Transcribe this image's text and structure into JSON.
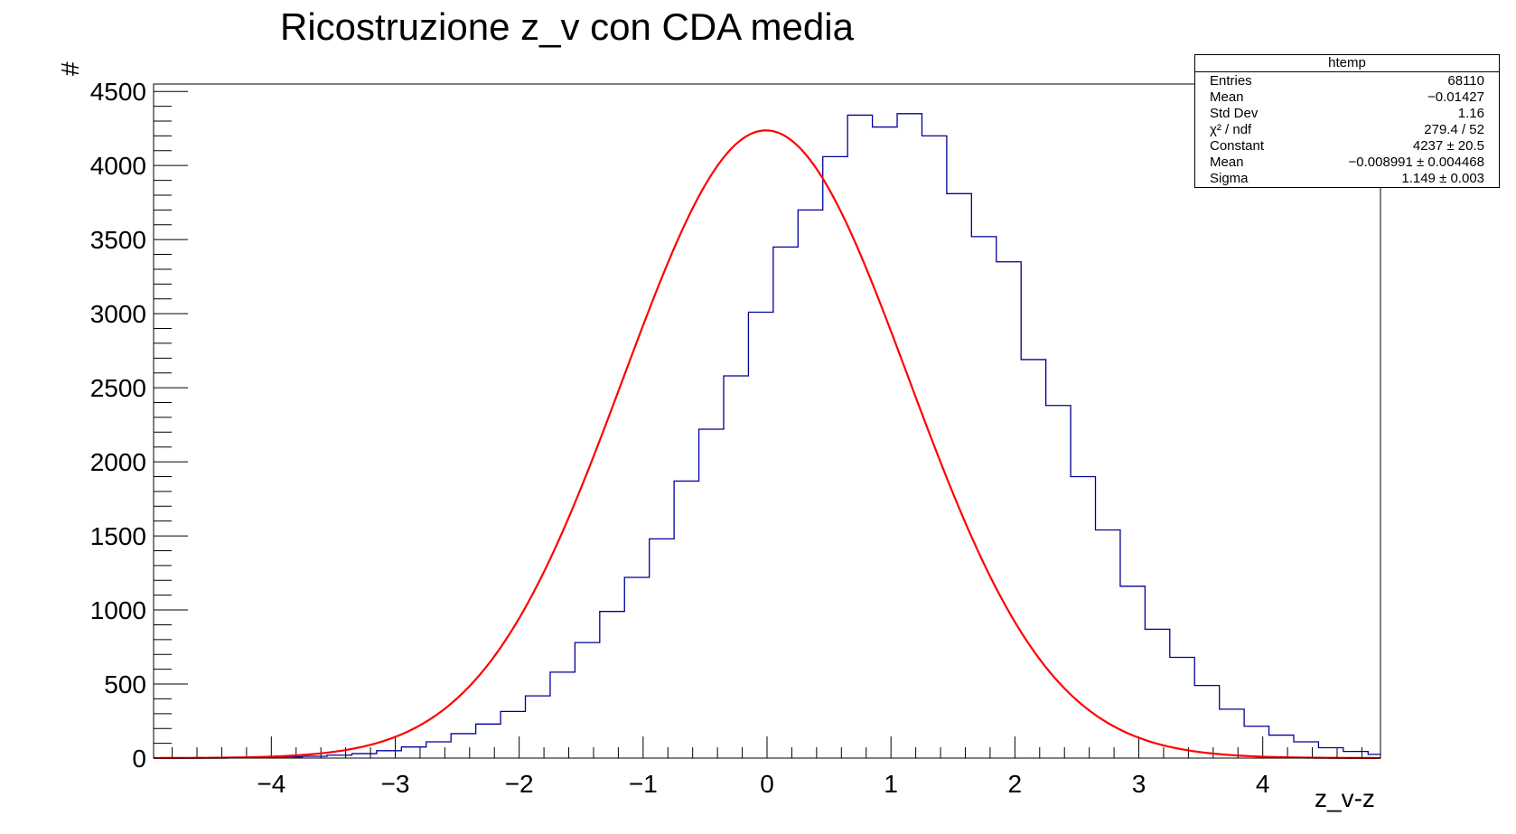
{
  "chart_data": {
    "type": "histogram",
    "title": "Ricostruzione z_v con CDA media",
    "xlabel": "z_v-z",
    "ylabel": "#",
    "xlim": [
      -4.95,
      4.95
    ],
    "ylim": [
      0,
      4550
    ],
    "x_ticks": [
      -4,
      -3,
      -2,
      -1,
      0,
      1,
      2,
      3,
      4
    ],
    "x_tick_labels": [
      "−4",
      "−3",
      "−2",
      "−1",
      "0",
      "1",
      "2",
      "3",
      "4"
    ],
    "y_ticks": [
      0,
      500,
      1000,
      1500,
      2000,
      2500,
      3000,
      3500,
      4000,
      4500
    ],
    "y_tick_labels": [
      "0",
      "500",
      "1000",
      "1500",
      "2000",
      "2500",
      "3000",
      "3500",
      "4000",
      "4500"
    ],
    "bin_width": 0.2,
    "bin_edges_start": -4.95,
    "bin_counts": [
      0,
      0,
      0,
      3,
      5,
      8,
      12,
      20,
      30,
      50,
      75,
      110,
      165,
      230,
      315,
      420,
      580,
      780,
      990,
      1220,
      1480,
      1870,
      2220,
      2580,
      3010,
      3450,
      3700,
      4060,
      4340,
      4260,
      4350,
      4200,
      3810,
      3520,
      3350,
      2690,
      2380,
      1900,
      1540,
      1160,
      870,
      680,
      490,
      330,
      215,
      155,
      110,
      70,
      45,
      25,
      15,
      8,
      5,
      3,
      2,
      1,
      0,
      0,
      0,
      0,
      0,
      0,
      0,
      0,
      0,
      0
    ],
    "histogram_color": "#000099",
    "fit": {
      "function": "gaus",
      "constant": 4237,
      "mean": -0.008991,
      "sigma": 1.149,
      "color": "#ff0000"
    },
    "grid": false,
    "legend_position": "top-right"
  },
  "stats_box": {
    "name": "htemp",
    "rows": [
      {
        "label": "Entries",
        "value": "68110"
      },
      {
        "label": "Mean",
        "value": "−0.01427"
      },
      {
        "label": "Std Dev",
        "value": "1.16"
      },
      {
        "label": "χ² / ndf",
        "value": "279.4 / 52"
      },
      {
        "label": "Constant",
        "value": "4237 ± 20.5"
      },
      {
        "label": "Mean",
        "value": "−0.008991 ± 0.004468"
      },
      {
        "label": "Sigma",
        "value": "1.149 ± 0.003"
      }
    ]
  }
}
